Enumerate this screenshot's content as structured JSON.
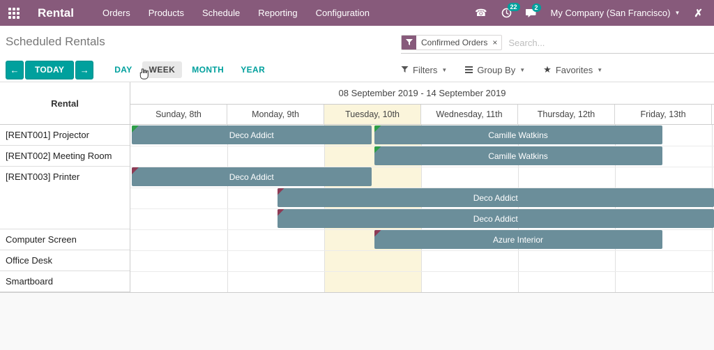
{
  "colors": {
    "navbar": "#875A7B",
    "primary": "#00A09D",
    "bar": "#6B8E9A",
    "today_bg": "#FBF5DB",
    "flag_green": "#2E9E48",
    "flag_red": "#8E3B55"
  },
  "topbar": {
    "app_name": "Rental",
    "menu_items": [
      "Orders",
      "Products",
      "Schedule",
      "Reporting",
      "Configuration"
    ],
    "activity_count": "22",
    "message_count": "2",
    "company": "My Company (San Francisco)"
  },
  "page": {
    "title": "Scheduled Rentals"
  },
  "search": {
    "facet_label": "Confirmed Orders",
    "facet_remove": "×",
    "placeholder": "Search..."
  },
  "controls": {
    "prev_label": "←",
    "today_label": "TODAY",
    "next_label": "→",
    "scales": [
      "DAY",
      "WEEK",
      "MONTH",
      "YEAR"
    ],
    "active_scale": "WEEK",
    "filters_label": "Filters",
    "groupby_label": "Group By",
    "favorites_label": "Favorites"
  },
  "gantt": {
    "row_header_title": "Rental",
    "range_label": "08 September 2019 - 14 September 2019",
    "day_labels": [
      "Sunday, 8th",
      "Monday, 9th",
      "Tuesday, 10th",
      "Wednesday, 11th",
      "Thursday, 12th",
      "Friday, 13th"
    ],
    "today_index": 2,
    "records": [
      {
        "label": "[RENT001] Projector",
        "lanes": 1,
        "bars": [
          {
            "text": "Deco Addict",
            "lane": 0,
            "start": 0,
            "end": 2.5,
            "flag": "green"
          },
          {
            "text": "Camille Watkins",
            "lane": 0,
            "start": 2.5,
            "end": 5.5,
            "flag": "green"
          }
        ]
      },
      {
        "label": "[RENT002] Meeting Room",
        "lanes": 1,
        "bars": [
          {
            "text": "Camille Watkins",
            "lane": 0,
            "start": 2.5,
            "end": 5.5,
            "flag": "green"
          }
        ]
      },
      {
        "label": "[RENT003] Printer",
        "lanes": 3,
        "bars": [
          {
            "text": "Deco Addict",
            "lane": 0,
            "start": 0,
            "end": 2.5,
            "flag": "red"
          },
          {
            "text": "Deco Addict",
            "lane": 1,
            "start": 1.5,
            "end": 7.5,
            "flag": "red"
          },
          {
            "text": "Deco Addict",
            "lane": 2,
            "start": 1.5,
            "end": 7.5,
            "flag": "red"
          }
        ]
      },
      {
        "label": "Computer Screen",
        "lanes": 1,
        "bars": [
          {
            "text": "Azure Interior",
            "lane": 0,
            "start": 2.5,
            "end": 5.5,
            "flag": "red"
          }
        ]
      },
      {
        "label": "Office Desk",
        "lanes": 1,
        "bars": []
      },
      {
        "label": "Smartboard",
        "lanes": 1,
        "bars": []
      }
    ]
  }
}
